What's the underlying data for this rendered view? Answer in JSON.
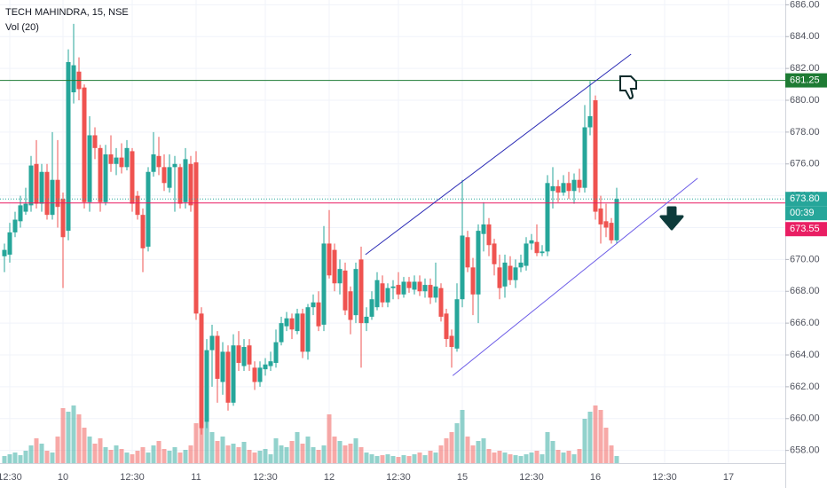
{
  "chart_data": {
    "type": "candlestick",
    "title": "TECH MAHINDRA, 15, NSE",
    "subtitle": "Vol (20)",
    "categories": [
      null,
      "12:30",
      null,
      null,
      null,
      null,
      null,
      null,
      null,
      null,
      null,
      "10",
      null,
      null,
      null,
      null,
      null,
      null,
      null,
      null,
      null,
      null,
      null,
      null,
      "12:30",
      null,
      null,
      null,
      null,
      null,
      null,
      null,
      null,
      null,
      null,
      null,
      "11",
      null,
      null,
      null,
      null,
      null,
      null,
      null,
      null,
      null,
      null,
      null,
      null,
      "12:30",
      null,
      null,
      null,
      null,
      null,
      null,
      null,
      null,
      null,
      null,
      null,
      "12",
      null,
      null,
      null,
      null,
      null,
      null,
      null,
      null,
      null,
      null,
      null,
      null,
      "12:30",
      null,
      null,
      null,
      null,
      null,
      null,
      null,
      null,
      null,
      null,
      null,
      "15",
      null,
      null,
      null,
      null,
      null,
      null,
      null,
      null,
      null,
      null,
      null,
      null,
      "12:30",
      null,
      null,
      null,
      null,
      null,
      null,
      null,
      null,
      null,
      null,
      null,
      "16",
      null,
      null,
      null,
      null,
      null,
      null,
      null,
      null,
      null,
      null,
      null,
      null,
      "12:30",
      null,
      null,
      null,
      null,
      null,
      null,
      null,
      null,
      null,
      null,
      null,
      "17"
    ],
    "open": [
      670.2,
      670.3,
      671.7,
      672.4,
      673,
      673.4,
      676,
      673.5,
      675.5,
      672.8,
      675,
      673.8,
      671.8,
      680.5,
      681.8,
      680.8,
      673.6,
      677.8,
      677,
      673.6,
      676.6,
      676,
      676.4,
      675.8,
      676.8,
      674,
      672.8,
      670.8,
      675.5,
      676.5,
      675.8,
      674.5,
      675.8,
      675.8,
      673.6,
      676,
      676.1,
      666.6,
      659.8,
      664.3,
      665.2,
      662.3,
      664.2,
      661,
      664.6,
      663.3,
      664.6,
      663.2,
      662.3,
      663.1,
      663.3,
      663.5,
      664.8,
      665.8,
      666.3,
      665.5,
      666.6,
      664.2,
      667,
      667.3,
      665.9,
      671,
      670.6,
      668.5,
      669.3,
      668,
      666.5,
      670,
      666,
      666.4,
      667,
      668.5,
      667.3,
      668.2,
      668.4,
      667.8,
      668.6,
      668.1,
      668.6,
      668,
      668.4,
      667.6,
      668.2,
      666.6,
      665.2,
      664.4,
      667.5,
      671.4,
      669.5,
      667.8,
      671.6,
      672.2,
      671,
      669.5,
      668.3,
      669.6,
      668.7,
      669.5,
      669.6,
      671,
      671.1,
      670.4,
      670.5,
      674.3,
      674.6,
      674.2,
      674.8,
      674.3,
      675,
      674.5,
      678.3,
      680,
      673.2,
      672.4,
      672.3,
      671.2,
      null,
      null,
      null,
      null,
      null,
      null,
      null,
      null,
      null,
      null,
      null,
      null,
      null,
      null,
      null,
      null,
      null,
      null,
      null,
      null,
      null
    ],
    "high": [
      671,
      672.3,
      673,
      674,
      674.5,
      676.5,
      677.5,
      676,
      676,
      678,
      677.5,
      674.2,
      683.2,
      684.8,
      682.7,
      681,
      679,
      678.3,
      677.2,
      677.2,
      677.8,
      677,
      677.3,
      677.5,
      677,
      674.3,
      673.2,
      675.8,
      678,
      677.7,
      676.6,
      676.6,
      676.5,
      676,
      677,
      676.5,
      676.8,
      667,
      665,
      665.9,
      665.5,
      664.8,
      664.6,
      665.3,
      665.5,
      665,
      665,
      663.6,
      663.6,
      663.8,
      664.2,
      665.6,
      666.4,
      666.7,
      666.6,
      666.9,
      666.9,
      667.2,
      667.8,
      668,
      672.1,
      673.1,
      671,
      670,
      669.8,
      668.3,
      669.8,
      670.8,
      667,
      668,
      669.2,
      669,
      668.5,
      668.7,
      669.2,
      668.9,
      668.9,
      669,
      669,
      668.8,
      668.8,
      669.8,
      668.5,
      666.9,
      665.6,
      668.5,
      675,
      671.8,
      670.1,
      672.2,
      673.6,
      672.6,
      671.3,
      670.3,
      670.3,
      670.2,
      670,
      670.3,
      671.4,
      671.6,
      672.2,
      670.9,
      675.3,
      675.8,
      675,
      675.3,
      675.5,
      675.4,
      675.7,
      679.7,
      681.2,
      680.3,
      674,
      673.5,
      672.6,
      674.5,
      null,
      null,
      null,
      null,
      null,
      null,
      null,
      null,
      null,
      null,
      null,
      null,
      null,
      null,
      null,
      null,
      null,
      null,
      null,
      null,
      null
    ],
    "low": [
      669.2,
      669.8,
      671.4,
      672,
      672.8,
      673,
      673.2,
      673,
      672.5,
      672.5,
      672,
      668.2,
      671.2,
      679.8,
      680,
      673.2,
      673,
      676.3,
      673,
      673.4,
      675.5,
      675.3,
      675.4,
      675.6,
      673,
      672.5,
      669.2,
      670.5,
      675.2,
      675.3,
      674.3,
      674.2,
      673,
      673.2,
      673.2,
      673,
      666.2,
      659,
      659.4,
      662,
      661,
      661.5,
      660.5,
      660.8,
      663,
      663,
      663,
      661.8,
      662,
      662.7,
      663,
      663.2,
      664.6,
      665.5,
      665,
      665.3,
      663.8,
      663.7,
      666.5,
      665.5,
      665.5,
      668.8,
      668,
      667.8,
      666.5,
      665.3,
      666,
      663.2,
      665.5,
      666.2,
      666.8,
      667,
      667,
      667.5,
      667.5,
      667.6,
      667.9,
      667.8,
      667.7,
      667.6,
      667.2,
      667.3,
      666.1,
      664.5,
      663.2,
      664.2,
      667,
      669.2,
      666.5,
      666,
      670.5,
      670.2,
      669,
      667.5,
      667.6,
      668.4,
      668.2,
      669.2,
      669.3,
      670.6,
      670.2,
      670.2,
      670.2,
      673.2,
      673.6,
      674,
      673.8,
      673.5,
      674.2,
      674.2,
      677.8,
      672.5,
      671,
      671.4,
      671,
      671,
      null,
      null,
      null,
      null,
      null,
      null,
      null,
      null,
      null,
      null,
      null,
      null,
      null,
      null,
      null,
      null,
      null,
      null,
      null,
      null,
      null
    ],
    "close": [
      670.6,
      671.7,
      672.5,
      673.4,
      673.5,
      675.9,
      673.5,
      675.5,
      672.8,
      675,
      673.3,
      671.4,
      682.4,
      682.2,
      680.7,
      673.6,
      677.8,
      677,
      673.6,
      676.6,
      676,
      676.4,
      675.8,
      677,
      673.5,
      672.8,
      670.7,
      675.5,
      676.6,
      675.8,
      674.8,
      675.8,
      676,
      673.5,
      676.3,
      673.4,
      666.6,
      659.4,
      664.3,
      665.2,
      662.5,
      664.2,
      661,
      664.6,
      663.5,
      664.5,
      663.4,
      662.3,
      663.2,
      663.4,
      663.6,
      664.8,
      666,
      666.3,
      665.6,
      666.6,
      664.2,
      667,
      667.3,
      665.8,
      671,
      669,
      668.5,
      669.4,
      666.8,
      666.2,
      669.4,
      666,
      666.4,
      667.5,
      668.7,
      667.3,
      668.2,
      668.3,
      667.8,
      668.6,
      668.2,
      668.6,
      668,
      668.4,
      667.6,
      668.3,
      666.4,
      665,
      664.5,
      667.5,
      671.5,
      669.5,
      667.8,
      671.8,
      672.2,
      670.9,
      669.7,
      668.2,
      669.8,
      668.7,
      669.5,
      669.8,
      671,
      671.2,
      670.4,
      670.5,
      674.8,
      674.6,
      674.2,
      674.8,
      674.3,
      675,
      674.5,
      678.3,
      679,
      673,
      672.2,
      672,
      671.2,
      673.8,
      null,
      null,
      null,
      null,
      null,
      null,
      null,
      null,
      null,
      null,
      null,
      null,
      null,
      null,
      null,
      null,
      null,
      null,
      null,
      null,
      null
    ],
    "volume": [
      8,
      10,
      12,
      9,
      14,
      20,
      28,
      22,
      14,
      12,
      30,
      62,
      58,
      65,
      55,
      40,
      30,
      22,
      28,
      18,
      15,
      20,
      16,
      12,
      10,
      14,
      18,
      12,
      20,
      25,
      16,
      14,
      18,
      12,
      15,
      20,
      45,
      70,
      55,
      35,
      25,
      30,
      20,
      22,
      18,
      24,
      15,
      12,
      14,
      16,
      10,
      28,
      20,
      18,
      25,
      35,
      22,
      30,
      18,
      15,
      20,
      55,
      30,
      25,
      20,
      22,
      28,
      18,
      12,
      10,
      8,
      9,
      10,
      8,
      7,
      9,
      8,
      10,
      12,
      9,
      14,
      12,
      20,
      28,
      35,
      45,
      60,
      30,
      20,
      25,
      28,
      16,
      12,
      14,
      12,
      10,
      9,
      8,
      10,
      12,
      14,
      10,
      35,
      25,
      15,
      12,
      14,
      10,
      16,
      50,
      58,
      65,
      60,
      40,
      20,
      8,
      null,
      null,
      null,
      null,
      null,
      null,
      null,
      null,
      null,
      null,
      null,
      null,
      null,
      null,
      null,
      null,
      null,
      null,
      null,
      null,
      null
    ],
    "up_color": "#26a69a",
    "down_color": "#ef5350",
    "ylim": [
      657.2,
      686.3
    ],
    "yticks": [
      {
        "value": 658,
        "label": "658.00"
      },
      {
        "value": 660,
        "label": "660.00"
      },
      {
        "value": 662,
        "label": "662.00"
      },
      {
        "value": 664,
        "label": "664.00"
      },
      {
        "value": 666,
        "label": "666.00"
      },
      {
        "value": 668,
        "label": "668.00"
      },
      {
        "value": 670,
        "label": "670.00"
      },
      {
        "value": 672,
        "label": "672.00"
      },
      {
        "value": 674,
        "label": "674.00"
      },
      {
        "value": 676,
        "label": "676.00"
      },
      {
        "value": 678,
        "label": "678.00"
      },
      {
        "value": 680,
        "label": "680.00"
      },
      {
        "value": 682,
        "label": "682.00"
      },
      {
        "value": 684,
        "label": "684.00"
      },
      {
        "value": 686,
        "label": "686.00"
      }
    ],
    "volume_ylim": [
      0,
      100
    ],
    "grid": true,
    "hlines": [
      {
        "value": 681.25,
        "label": "681.25",
        "color": "#1e7b34",
        "style": "solid"
      },
      {
        "value": 673.8,
        "label": "673.80",
        "sublabel": "00:39",
        "color": "#26a69a",
        "style": "dotted"
      },
      {
        "value": 673.55,
        "label": "673.55",
        "color": "#e91e63",
        "style": "solid"
      }
    ],
    "trendlines": [
      {
        "x": [
          67.8,
          117.7
        ],
        "y": [
          670.3,
          682.9
        ],
        "color": "#2b2bb5"
      },
      {
        "x": [
          84.2,
          130.2
        ],
        "y": [
          662.7,
          675.1
        ],
        "color": "#6c5ce7"
      }
    ]
  }
}
